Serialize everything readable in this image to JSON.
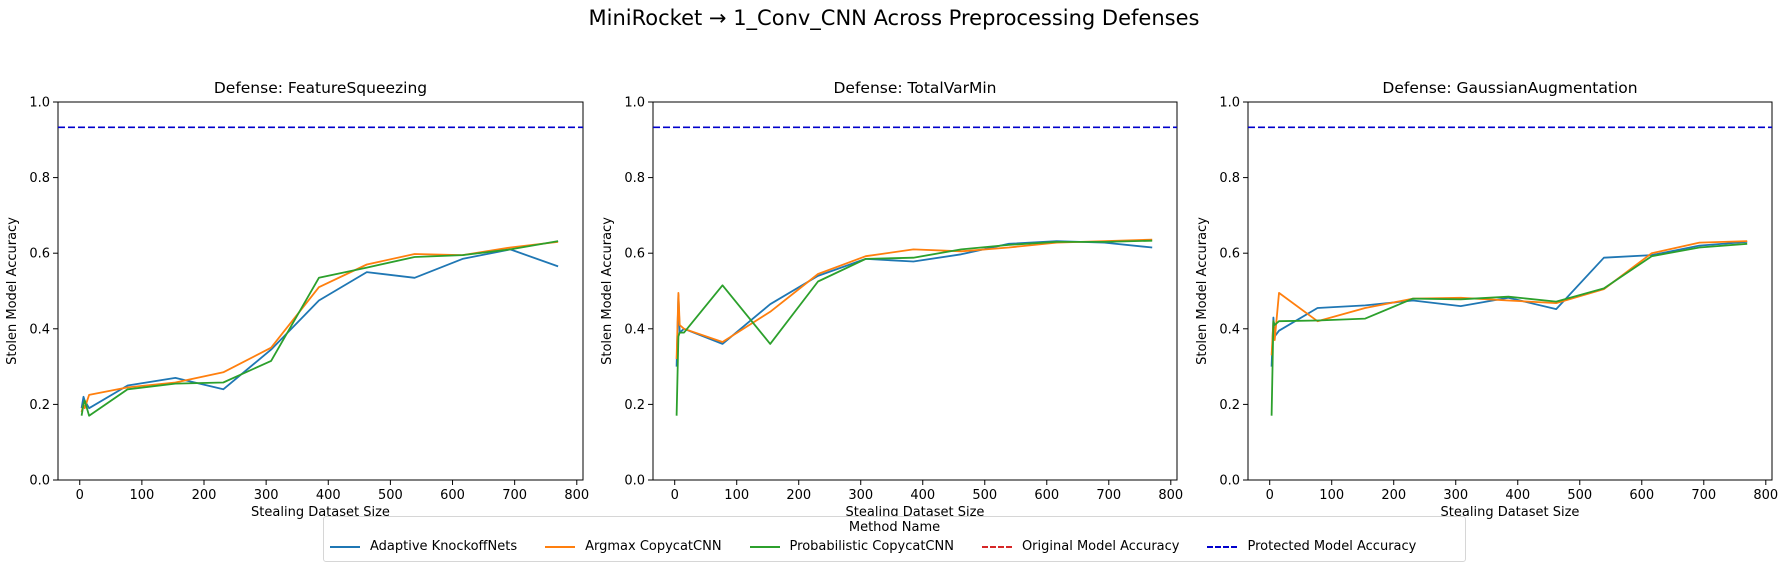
{
  "suptitle": "MiniRocket → 1_Conv_CNN Across Preprocessing Defenses",
  "legend": {
    "title": "Method Name",
    "entries": [
      {
        "label": "Adaptive KnockoffNets",
        "color": "#1f77b4",
        "style": "solid"
      },
      {
        "label": "Argmax CopycatCNN",
        "color": "#ff7f0e",
        "style": "solid"
      },
      {
        "label": "Probabilistic CopycatCNN",
        "color": "#2ca02c",
        "style": "solid"
      },
      {
        "label": "Original Model Accuracy",
        "color": "#d62728",
        "style": "dashed"
      },
      {
        "label": "Protected Model Accuracy",
        "color": "#0000cc",
        "style": "dashed"
      }
    ]
  },
  "chart_data": [
    {
      "type": "line",
      "title": "Defense: FeatureSqueezing",
      "xlabel": "Stealing Dataset Size",
      "ylabel": "Stolen Model Accuracy",
      "xlim": [
        -35,
        810
      ],
      "ylim": [
        0,
        1.0
      ],
      "xticks": [
        0,
        100,
        200,
        300,
        400,
        500,
        600,
        700,
        800
      ],
      "yticks": [
        "0.0",
        "0.2",
        "0.4",
        "0.6",
        "0.8",
        "1.0"
      ],
      "hlines": [
        {
          "name": "Protected Model Accuracy",
          "y": 0.933,
          "color": "#0000cc"
        }
      ],
      "series": [
        {
          "name": "Adaptive KnockoffNets",
          "color": "#1f77b4",
          "x": [
            3,
            6,
            8,
            15,
            77,
            154,
            231,
            308,
            385,
            462,
            539,
            616,
            693,
            770
          ],
          "y": [
            0.19,
            0.22,
            0.21,
            0.19,
            0.25,
            0.27,
            0.24,
            0.345,
            0.475,
            0.55,
            0.535,
            0.585,
            0.61,
            0.565
          ]
        },
        {
          "name": "Argmax CopycatCNN",
          "color": "#ff7f0e",
          "x": [
            3,
            6,
            8,
            15,
            77,
            154,
            231,
            308,
            385,
            462,
            539,
            616,
            693,
            770
          ],
          "y": [
            0.18,
            0.2,
            0.19,
            0.225,
            0.245,
            0.258,
            0.285,
            0.35,
            0.51,
            0.57,
            0.598,
            0.595,
            0.615,
            0.63
          ]
        },
        {
          "name": "Probabilistic CopycatCNN",
          "color": "#2ca02c",
          "x": [
            3,
            6,
            8,
            15,
            77,
            154,
            231,
            308,
            385,
            462,
            539,
            616,
            693,
            770
          ],
          "y": [
            0.17,
            0.2,
            0.21,
            0.17,
            0.24,
            0.255,
            0.258,
            0.315,
            0.535,
            0.562,
            0.59,
            0.595,
            0.61,
            0.632
          ]
        }
      ]
    },
    {
      "type": "line",
      "title": "Defense: TotalVarMin",
      "xlabel": "Stealing Dataset Size",
      "ylabel": "Stolen Model Accuracy",
      "xlim": [
        -35,
        810
      ],
      "ylim": [
        0,
        1.0
      ],
      "xticks": [
        0,
        100,
        200,
        300,
        400,
        500,
        600,
        700,
        800
      ],
      "yticks": [
        "0.0",
        "0.2",
        "0.4",
        "0.6",
        "0.8",
        "1.0"
      ],
      "hlines": [
        {
          "name": "Protected Model Accuracy",
          "y": 0.933,
          "color": "#0000cc"
        }
      ],
      "series": [
        {
          "name": "Adaptive KnockoffNets",
          "color": "#1f77b4",
          "x": [
            3,
            6,
            8,
            15,
            77,
            154,
            231,
            308,
            385,
            462,
            539,
            616,
            693,
            770
          ],
          "y": [
            0.3,
            0.49,
            0.39,
            0.4,
            0.36,
            0.465,
            0.54,
            0.585,
            0.578,
            0.597,
            0.625,
            0.632,
            0.628,
            0.615
          ]
        },
        {
          "name": "Argmax CopycatCNN",
          "color": "#ff7f0e",
          "x": [
            3,
            6,
            8,
            15,
            77,
            154,
            231,
            308,
            385,
            462,
            539,
            616,
            693,
            770
          ],
          "y": [
            0.32,
            0.495,
            0.41,
            0.4,
            0.365,
            0.445,
            0.545,
            0.592,
            0.61,
            0.605,
            0.615,
            0.628,
            0.632,
            0.636
          ]
        },
        {
          "name": "Probabilistic CopycatCNN",
          "color": "#2ca02c",
          "x": [
            3,
            6,
            8,
            15,
            77,
            154,
            231,
            308,
            385,
            462,
            539,
            616,
            693,
            770
          ],
          "y": [
            0.17,
            0.38,
            0.39,
            0.39,
            0.515,
            0.36,
            0.525,
            0.585,
            0.588,
            0.61,
            0.622,
            0.63,
            0.63,
            0.633
          ]
        }
      ]
    },
    {
      "type": "line",
      "title": "Defense: GaussianAugmentation",
      "xlabel": "Stealing Dataset Size",
      "ylabel": "Stolen Model Accuracy",
      "xlim": [
        -35,
        810
      ],
      "ylim": [
        0,
        1.0
      ],
      "xticks": [
        0,
        100,
        200,
        300,
        400,
        500,
        600,
        700,
        800
      ],
      "yticks": [
        "0.0",
        "0.2",
        "0.4",
        "0.6",
        "0.8",
        "1.0"
      ],
      "hlines": [
        {
          "name": "Protected Model Accuracy",
          "y": 0.933,
          "color": "#0000cc"
        }
      ],
      "series": [
        {
          "name": "Adaptive KnockoffNets",
          "color": "#1f77b4",
          "x": [
            3,
            6,
            8,
            15,
            77,
            154,
            231,
            308,
            385,
            462,
            539,
            616,
            693,
            770
          ],
          "y": [
            0.3,
            0.43,
            0.38,
            0.395,
            0.455,
            0.462,
            0.475,
            0.46,
            0.482,
            0.452,
            0.588,
            0.595,
            0.62,
            0.63
          ]
        },
        {
          "name": "Argmax CopycatCNN",
          "color": "#ff7f0e",
          "x": [
            3,
            6,
            8,
            15,
            77,
            154,
            231,
            308,
            385,
            462,
            539,
            616,
            693,
            770
          ],
          "y": [
            0.33,
            0.42,
            0.37,
            0.495,
            0.42,
            0.455,
            0.48,
            0.482,
            0.475,
            0.468,
            0.505,
            0.6,
            0.628,
            0.632
          ]
        },
        {
          "name": "Probabilistic CopycatCNN",
          "color": "#2ca02c",
          "x": [
            3,
            6,
            8,
            15,
            77,
            154,
            231,
            308,
            385,
            462,
            539,
            616,
            693,
            770
          ],
          "y": [
            0.17,
            0.42,
            0.41,
            0.42,
            0.422,
            0.427,
            0.48,
            0.478,
            0.485,
            0.472,
            0.507,
            0.592,
            0.615,
            0.625
          ]
        }
      ]
    }
  ]
}
